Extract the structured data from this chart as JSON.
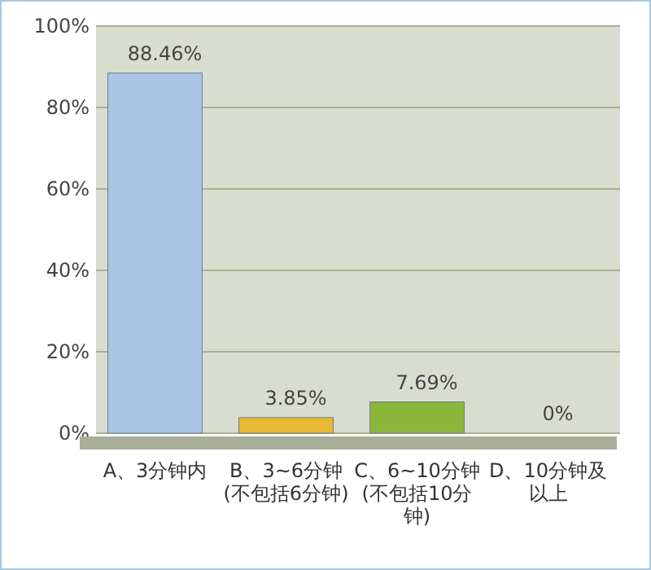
{
  "chart_data": {
    "type": "bar",
    "categories": [
      "A、3分钟内",
      "B、3~6分钟(不包括6分钟)",
      "C、6~10分钟(不包括10分钟)",
      "D、10分钟及以上"
    ],
    "values": [
      88.46,
      3.85,
      7.69,
      0
    ],
    "colors": [
      "#a9c6e4",
      "#e8b832",
      "#8ab63a",
      "#f0a482"
    ],
    "value_labels": [
      "88.46%",
      "3.85%",
      "7.69%",
      "0%"
    ],
    "ylim": [
      0,
      100
    ],
    "yticks": [
      {
        "value": 0,
        "label": "0%"
      },
      {
        "value": 20,
        "label": "20%"
      },
      {
        "value": 40,
        "label": "40%"
      },
      {
        "value": 60,
        "label": "60%"
      },
      {
        "value": 80,
        "label": "80%"
      },
      {
        "value": 100,
        "label": "100%"
      }
    ],
    "grid": "y"
  }
}
